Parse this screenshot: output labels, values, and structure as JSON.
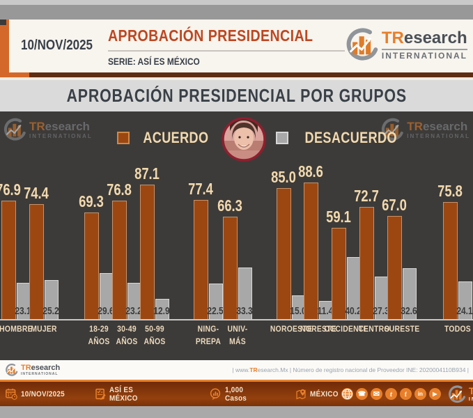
{
  "header": {
    "date": "10/NOV/2025",
    "title": "APROBACIÓN PRESIDENCIAL",
    "series_label": "SERIE: ASÍ ES MÉXICO",
    "brand": {
      "name_accent": "TR",
      "name_rest": "esearch",
      "subtitle": "INTERNATIONAL"
    }
  },
  "section_title": "APROBACIÓN PRESIDENCIAL POR GRUPOS",
  "chart_data": {
    "type": "bar",
    "title": "APROBACIÓN PRESIDENCIAL POR GRUPOS",
    "legend_position": "top",
    "grid": false,
    "ylim": [
      0,
      100
    ],
    "value_decimals": 1,
    "categories": [
      "HOMBRE",
      "MUJER",
      "18-29 AÑOS",
      "30-49 AÑOS",
      "50-99 AÑOS",
      "NING-PREPA",
      "UNIV-MÁS",
      "NOROESTE",
      "NORESTE",
      "OCCIDENTE",
      "CENTRO",
      "SURESTE",
      "TODOS"
    ],
    "category_label_lines": [
      [
        "HOMBRE"
      ],
      [
        "MUJER"
      ],
      [
        "18-29",
        "AÑOS"
      ],
      [
        "30-49",
        "AÑOS"
      ],
      [
        "50-99",
        "AÑOS"
      ],
      [
        "NING-",
        "PREPA"
      ],
      [
        "UNIV-",
        "MÁS"
      ],
      [
        "NOROESTE"
      ],
      [
        "NORESTE"
      ],
      [
        "OCCIDENTE"
      ],
      [
        "CENTRO"
      ],
      [
        "SURESTE"
      ],
      [
        "TODOS"
      ]
    ],
    "series": [
      {
        "name": "ACUERDO",
        "color": "#9c4712",
        "values": [
          76.9,
          74.4,
          69.3,
          76.8,
          87.1,
          77.4,
          66.3,
          85.0,
          88.6,
          59.1,
          72.7,
          67.0,
          75.8
        ]
      },
      {
        "name": "DESACUERDO",
        "color": "#a8a8a8",
        "values": [
          23.1,
          25.2,
          29.6,
          23.2,
          12.9,
          22.5,
          33.3,
          15.0,
          11.4,
          40.2,
          27.3,
          32.6,
          24.1
        ]
      }
    ],
    "group_gaps_after": [
      "MUJER",
      "50-99 AÑOS",
      "UNIV-MÁS",
      "SURESTE"
    ]
  },
  "footer": {
    "info_strip": {
      "www_prefix": "| www.",
      "www_accent": "TR",
      "www_rest": "esearch.Mx | Número de registro nacional de Proveedor INE: 2020004110B934 |"
    },
    "bar_items": [
      {
        "icon": "calendar-icon",
        "label": "10/NOV/2025"
      },
      {
        "icon": "survey-icon",
        "label": "ASÍ ES MÉXICO"
      },
      {
        "icon": "cases-icon",
        "label": "1,000 Casos"
      },
      {
        "icon": "location-icon",
        "label": "MÉXICO"
      }
    ],
    "social_icons": [
      "website",
      "whatsapp",
      "email",
      "twitter",
      "facebook",
      "linkedin",
      "youtube"
    ]
  },
  "colors": {
    "accent_orange": "#e07b28",
    "bar_acuerdo": "#9c4712",
    "bar_desacuerdo": "#a8a8a8",
    "chart_bg": "#3d3b39",
    "title_red": "#bd4721",
    "cream_text": "#f2d9ae",
    "photo_border": "#8e1f2f"
  }
}
